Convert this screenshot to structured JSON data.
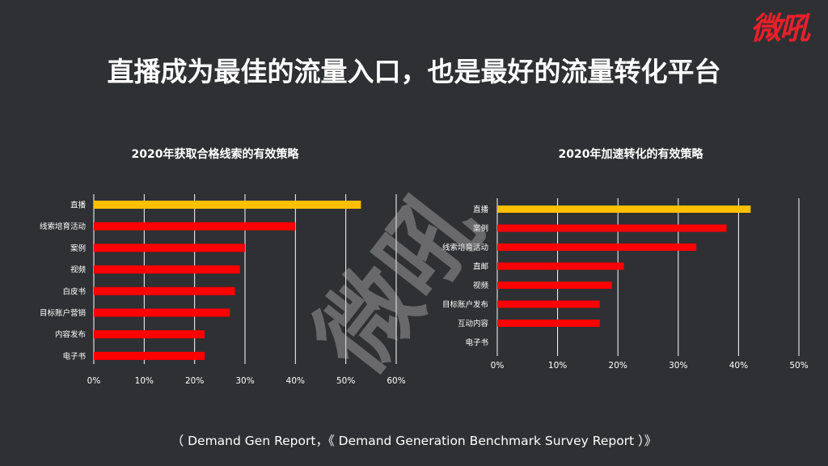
{
  "logo": "微吼",
  "page_title": "直播成为最佳的流量入口，也是最好的流量转化平台",
  "watermark": "微吼",
  "footer": "（ Demand Gen Report，《 Demand Generation Benchmark Survey Report ）》",
  "colors": {
    "highlight": "#ffc000",
    "bar": "#ff0000",
    "background": "#2f3033",
    "grid": "#ffffff"
  },
  "chart_data": [
    {
      "type": "bar",
      "orientation": "horizontal",
      "title": "2020年获取合格线索的有效策略",
      "categories": [
        "直播",
        "线索培育活动",
        "案例",
        "视频",
        "白皮书",
        "目标账户营销",
        "内容发布",
        "电子书"
      ],
      "values": [
        53,
        40,
        30,
        29,
        28,
        27,
        22,
        22
      ],
      "xlim": [
        0,
        60
      ],
      "xticks": [
        "0%",
        "10%",
        "20%",
        "30%",
        "40%",
        "50%",
        "60%"
      ],
      "grid": true,
      "highlight_index": 0
    },
    {
      "type": "bar",
      "orientation": "horizontal",
      "title": "2020年加速转化的有效策略",
      "categories": [
        "直播",
        "案例",
        "线索培育活动",
        "直邮",
        "视频",
        "目标账户发布",
        "互动内容",
        "电子书"
      ],
      "values": [
        42,
        38,
        33,
        21,
        19,
        17,
        17,
        0
      ],
      "xlim": [
        0,
        50
      ],
      "xticks": [
        "0%",
        "10%",
        "20%",
        "30%",
        "40%",
        "50%"
      ],
      "grid": true,
      "highlight_index": 0
    }
  ]
}
